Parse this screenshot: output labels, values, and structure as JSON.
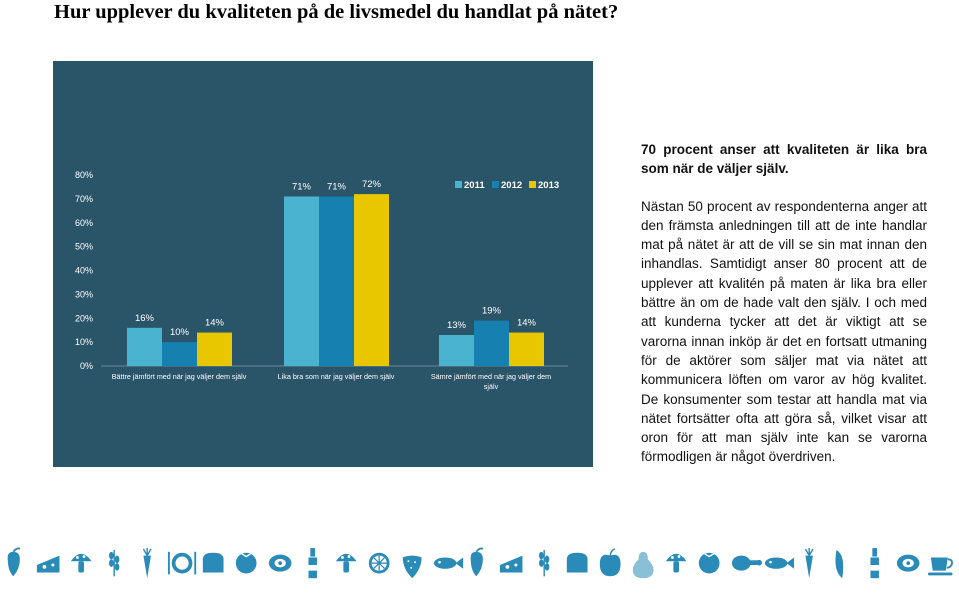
{
  "page": {
    "title": "Hur upplever du kvaliteten på de livsmedel du handlat på nätet?"
  },
  "article": {
    "lead": "70 procent anser att kvaliteten är lika bra som när de väljer själv.",
    "body": "Nästan 50 procent av respondenterna anger att den främsta anledningen till att de inte handlar mat på nätet är att de vill se sin mat innan den inhandlas. Samtidigt anser 80 procent att de upplever att kvalitén på maten är lika bra eller bättre än om de hade valt den själv. I och med att kunderna tycker att det är viktigt att se varorna innan inköp är det en fortsatt utmaning för de aktörer som säljer mat via nätet att kommunicera löften om varor av hög kvalitet. De konsumenter som testar att handla mat via nätet fortsätter ofta att göra så, vilket visar att oron för att man själv inte kan se varorna förmodligen är något överdriven."
  },
  "chart_data": {
    "type": "bar",
    "categories": [
      "Bättre jämfört med när jag väljer dem själv",
      "Lika bra som när jag väljer dem själv",
      "Sämre jämfört med när jag väljer dem själv"
    ],
    "series": [
      {
        "name": "2011",
        "values": [
          16,
          71,
          13
        ],
        "labels": [
          "16%",
          "71%",
          "13%"
        ],
        "color": "#4ab3cf"
      },
      {
        "name": "2012",
        "values": [
          10,
          71,
          19
        ],
        "labels": [
          "10%",
          "71%",
          "19%"
        ],
        "color": "#1680b0"
      },
      {
        "name": "2013",
        "values": [
          14,
          72,
          14
        ],
        "labels": [
          "14%",
          "72%",
          "14%"
        ],
        "color": "#e8c600"
      }
    ],
    "y_ticks": [
      "0%",
      "10%",
      "20%",
      "30%",
      "40%",
      "50%",
      "60%",
      "70%",
      "80%"
    ],
    "ylim": [
      0,
      80
    ],
    "title": "",
    "xlabel": "",
    "ylabel": "",
    "legend": "top-right",
    "grid": false,
    "background": "#2a5468"
  },
  "icons": [
    {
      "name": "pepper-icon",
      "color": "#2a8ab8"
    },
    {
      "name": "cheese-icon",
      "color": "#2a8ab8"
    },
    {
      "name": "mushroom-icon",
      "color": "#2a8ab8"
    },
    {
      "name": "wheat-icon",
      "color": "#2a8ab8"
    },
    {
      "name": "carrot-icon",
      "color": "#2a8ab8"
    },
    {
      "name": "plate-cutlery-icon",
      "color": "#2a8ab8"
    },
    {
      "name": "bread-icon",
      "color": "#2a8ab8"
    },
    {
      "name": "tomato-icon",
      "color": "#2a8ab8"
    },
    {
      "name": "kiwi-icon",
      "color": "#2a8ab8"
    },
    {
      "name": "bottle-icon",
      "color": "#2a8ab8"
    },
    {
      "name": "mushroom-icon",
      "color": "#2a8ab8"
    },
    {
      "name": "citrus-icon",
      "color": "#2a8ab8"
    },
    {
      "name": "strawberry-icon",
      "color": "#2a8ab8"
    },
    {
      "name": "fish-icon",
      "color": "#2a8ab8"
    },
    {
      "name": "pepper-icon",
      "color": "#2a8ab8"
    },
    {
      "name": "cheese-icon",
      "color": "#2a8ab8"
    },
    {
      "name": "wheat-icon",
      "color": "#2a8ab8"
    },
    {
      "name": "bread-icon",
      "color": "#2a8ab8"
    },
    {
      "name": "apple-icon",
      "color": "#2a8ab8"
    },
    {
      "name": "pear-icon",
      "color": "#2a8ab8"
    },
    {
      "name": "mushroom-icon",
      "color": "#2a8ab8"
    },
    {
      "name": "tomato-icon",
      "color": "#2a8ab8"
    },
    {
      "name": "ham-icon",
      "color": "#2a8ab8"
    },
    {
      "name": "fish-icon",
      "color": "#2a8ab8"
    },
    {
      "name": "carrot-icon",
      "color": "#2a8ab8"
    },
    {
      "name": "peapod-icon",
      "color": "#2a8ab8"
    },
    {
      "name": "bottle-icon",
      "color": "#2a8ab8"
    },
    {
      "name": "kiwi-icon",
      "color": "#2a8ab8"
    },
    {
      "name": "cup-icon",
      "color": "#2a8ab8"
    }
  ]
}
